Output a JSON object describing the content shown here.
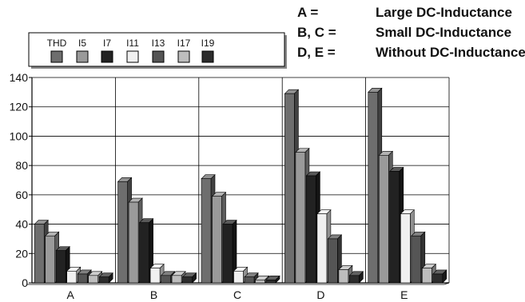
{
  "annotations": [
    {
      "key": "A =",
      "value": "Large DC-Inductance"
    },
    {
      "key": "B, C =",
      "value": "Small DC-Inductance"
    },
    {
      "key": "D, E =",
      "value": "Without DC-Inductance"
    }
  ],
  "colors": {
    "THD": "#6e6e6e",
    "I5": "#9a9a9a",
    "I7": "#222222",
    "I11": "#f0f0f0",
    "I13": "#555555",
    "I17": "#bdbdbd",
    "I19": "#2c2c2c"
  },
  "chart_data": {
    "type": "bar",
    "title": "",
    "xlabel": "",
    "ylabel": "",
    "categories": [
      "A",
      "B",
      "C",
      "D",
      "E"
    ],
    "ylim": [
      0,
      140
    ],
    "yticks": [
      0,
      20,
      40,
      60,
      80,
      100,
      120,
      140
    ],
    "grid": true,
    "legend": "top-left",
    "series": [
      {
        "name": "THD",
        "values": [
          40,
          69,
          71,
          129,
          130
        ]
      },
      {
        "name": "I5",
        "values": [
          32,
          55,
          59,
          89,
          87
        ]
      },
      {
        "name": "I7",
        "values": [
          22,
          41,
          40,
          73,
          76
        ]
      },
      {
        "name": "I11",
        "values": [
          8,
          10,
          8,
          47,
          47
        ]
      },
      {
        "name": "I13",
        "values": [
          6,
          5,
          4,
          30,
          32
        ]
      },
      {
        "name": "I17",
        "values": [
          5,
          5,
          2,
          9,
          10
        ]
      },
      {
        "name": "I19",
        "values": [
          4,
          4,
          2,
          5,
          6
        ]
      }
    ]
  }
}
